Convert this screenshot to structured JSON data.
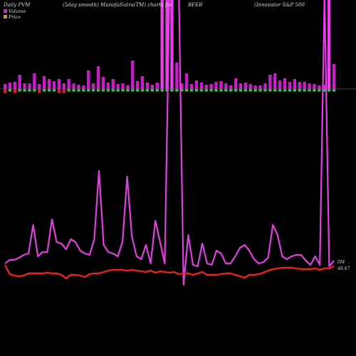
{
  "chart_data": {
    "type": "line",
    "header": {
      "left": "Daily PVM",
      "smoothing": "(5day smooth) MunafaSutra(TM) charts for",
      "symbol": "BFEB",
      "name": "(Innovator S&P 500"
    },
    "legend": [
      {
        "label": "Volume",
        "color": "#d61fd6"
      },
      {
        "label": "Price",
        "color": "#e0882a"
      }
    ],
    "end_labels": {
      "volume": "0M",
      "price": "48.47"
    },
    "colors": {
      "volume_bar": "#c81ec8",
      "volume_bar_peak": "#ee3cee",
      "up_bar": "#2bd64a",
      "down_bar": "#e0202a",
      "volume_line": "#e040e0",
      "price_line": "#ee2020",
      "baseline": "#8a8a8a"
    },
    "volume_bars": [
      7,
      9,
      10,
      20,
      8,
      8,
      22,
      7,
      18,
      14,
      11,
      14,
      8,
      14,
      8,
      6,
      5,
      26,
      8,
      32,
      17,
      9,
      14,
      7,
      8,
      5,
      40,
      11,
      18,
      9,
      6,
      9,
      200,
      200,
      200,
      37,
      8,
      22,
      7,
      12,
      9,
      6,
      7,
      10,
      11,
      8,
      5,
      15,
      8,
      9,
      7,
      5,
      5,
      8,
      20,
      22,
      12,
      15,
      10,
      14,
      10,
      10,
      8,
      7,
      5,
      6,
      200,
      35
    ],
    "direction_bars": [
      "d",
      "u",
      "d",
      "u",
      "u",
      "u",
      "u",
      "d",
      "u",
      "u",
      "u",
      "d",
      "d",
      "u",
      "u",
      "u",
      "u",
      "u",
      "u",
      "u",
      "u",
      "u",
      "u",
      "u",
      "u",
      "u",
      "u",
      "u",
      "u",
      "u",
      "u",
      "u",
      "u",
      "u",
      "u",
      "u",
      "u",
      "u",
      "u",
      "u",
      "u",
      "u",
      "u",
      "u",
      "u",
      "u",
      "u",
      "u",
      "u",
      "u",
      "u",
      "u",
      "u",
      "u",
      "u",
      "u",
      "u",
      "u",
      "u",
      "u",
      "u",
      "u",
      "u",
      "u",
      "u",
      "u",
      "u",
      "u"
    ],
    "volume_line": [
      370,
      365,
      365,
      362,
      358,
      356,
      316,
      360,
      354,
      354,
      308,
      340,
      342,
      350,
      336,
      340,
      352,
      356,
      358,
      336,
      240,
      344,
      354,
      356,
      360,
      340,
      248,
      332,
      360,
      364,
      344,
      370,
      310,
      340,
      370,
      -10,
      -10,
      -10,
      400,
      330,
      372,
      374,
      342,
      370,
      372,
      352,
      356,
      370,
      370,
      360,
      348,
      344,
      352,
      364,
      370,
      368,
      362,
      316,
      330,
      360,
      364,
      360,
      358,
      358,
      366,
      372,
      360,
      372,
      -10,
      374,
      366
    ],
    "price_line": [
      372,
      385,
      387,
      388,
      387,
      384,
      384,
      384,
      384,
      383,
      384,
      384,
      386,
      391,
      386,
      386,
      387,
      389,
      385,
      384,
      384,
      382,
      380,
      379,
      379,
      379,
      380,
      379,
      380,
      381,
      382,
      380,
      383,
      381,
      382,
      383,
      382,
      385,
      384,
      384,
      386,
      384,
      382,
      386,
      386,
      386,
      385,
      384,
      384,
      386,
      388,
      390,
      386,
      386,
      385,
      383,
      380,
      378,
      377,
      376,
      376,
      376,
      377,
      378,
      378,
      378,
      377,
      379,
      377,
      377,
      374
    ]
  }
}
